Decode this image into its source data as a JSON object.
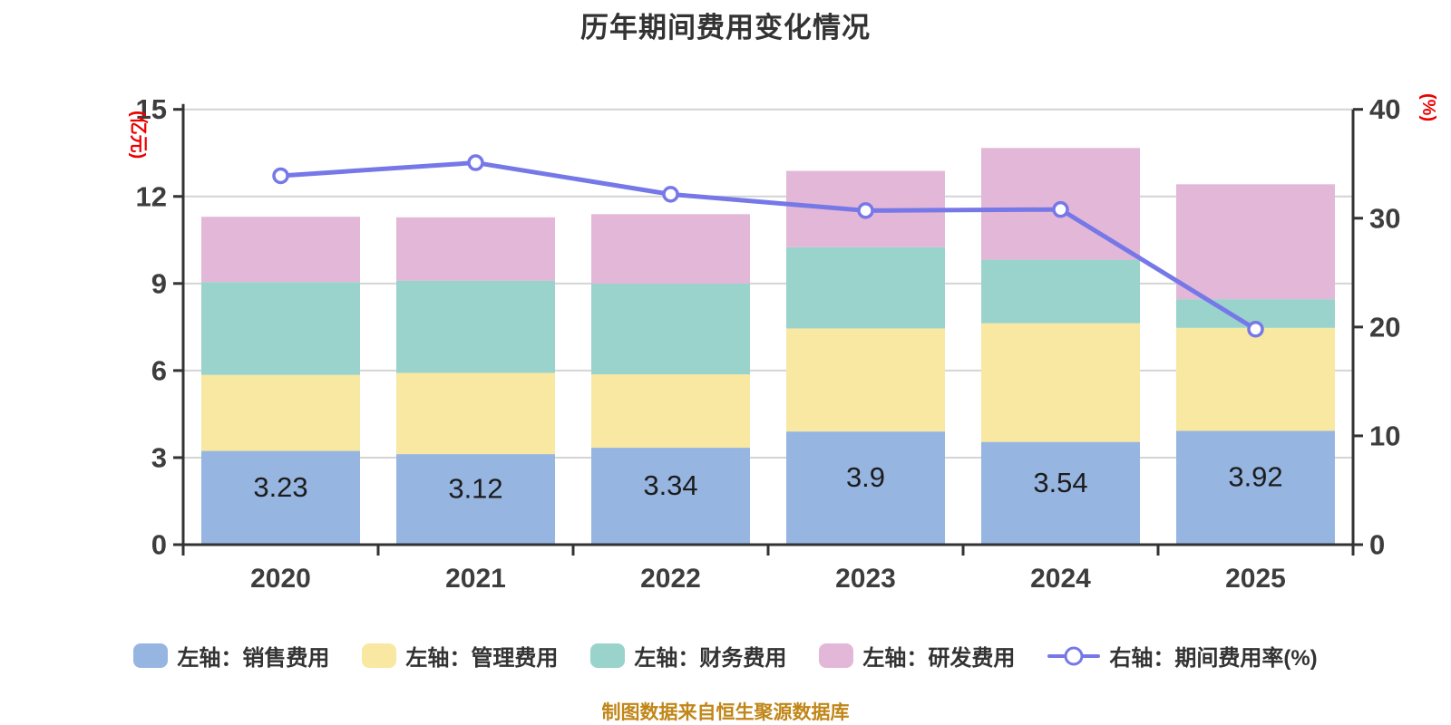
{
  "title": "历年期间费用变化情况",
  "source_note": "制图数据来自恒生聚源数据库",
  "colors": {
    "background": "#ffffff",
    "title_text": "#333333",
    "axis_line": "#333333",
    "axis_text": "#3d3d3d",
    "gridline": "#d4d4d4",
    "unit_label_red": "#ee0000",
    "value_label": "#1c1c1c",
    "source_text": "#c08618"
  },
  "chart_data": {
    "type": "bar",
    "subtype": "stacked-bar-with-line",
    "title": "历年期间费用变化情况",
    "categories": [
      "2020",
      "2021",
      "2022",
      "2023",
      "2024",
      "2025"
    ],
    "series": [
      {
        "key": "sales",
        "name": "左轴：销售费用",
        "type": "bar",
        "stack": true,
        "color": "#96b5e1",
        "values": [
          3.23,
          3.12,
          3.34,
          3.9,
          3.54,
          3.92
        ]
      },
      {
        "key": "admin",
        "name": "左轴：管理费用",
        "type": "bar",
        "stack": true,
        "color": "#f8e8a2",
        "values": [
          2.62,
          2.8,
          2.53,
          3.55,
          4.09,
          3.55
        ]
      },
      {
        "key": "finance",
        "name": "左轴：财务费用",
        "type": "bar",
        "stack": true,
        "color": "#99d3cc",
        "values": [
          3.2,
          3.18,
          3.13,
          2.8,
          2.19,
          0.99
        ]
      },
      {
        "key": "rd",
        "name": "左轴：研发费用",
        "type": "bar",
        "stack": true,
        "color": "#e3b7d7",
        "values": [
          2.25,
          2.18,
          2.39,
          2.63,
          3.85,
          3.96
        ]
      },
      {
        "key": "expense-ratio",
        "name": "右轴：期间费用率(%)",
        "type": "line",
        "axis": "right",
        "color": "#7678e8",
        "marker": "circle-white",
        "values": [
          33.9,
          35.1,
          32.2,
          30.7,
          30.8,
          19.8
        ]
      }
    ],
    "stack_totals": [
      11.3,
      11.28,
      11.39,
      12.88,
      13.67,
      12.42
    ],
    "bar_value_labels": [
      "3.23",
      "3.12",
      "3.34",
      "3.9",
      "3.54",
      "3.92"
    ],
    "left_axis": {
      "label": "(亿元)",
      "min": 0,
      "max": 15,
      "ticks": [
        0,
        3,
        6,
        9,
        12,
        15
      ]
    },
    "right_axis": {
      "label": "(%)",
      "min": 0,
      "max": 40,
      "ticks": [
        0,
        10,
        20,
        30,
        40
      ]
    },
    "grid": true,
    "legend_position": "bottom"
  }
}
